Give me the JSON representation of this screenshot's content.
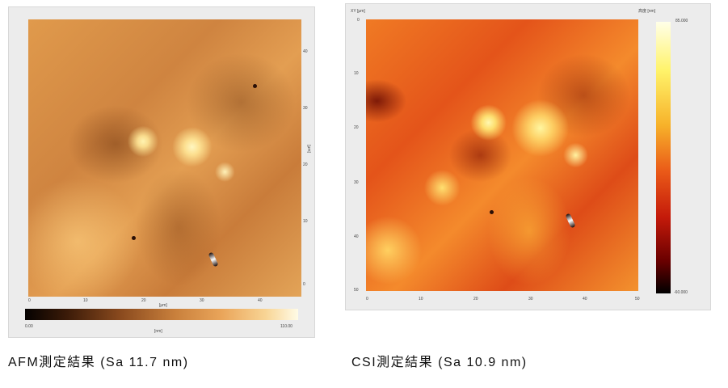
{
  "afm": {
    "caption": "AFM測定結果 (Sa 11.7 nm)",
    "x_ticks": [
      "0",
      "10",
      "20",
      "30",
      "40"
    ],
    "x_unit": "[μm]",
    "y_ticks": [
      "40",
      "30",
      "20",
      "10",
      "0"
    ],
    "y_unit": "[μm]",
    "colorbar_min": "0.00",
    "colorbar_max": "110.00",
    "colorbar_unit": "[nm]"
  },
  "csi": {
    "caption": "CSI測定結果 (Sa 10.9 nm)",
    "corner_label": "XY [μm]",
    "y_ticks": [
      "0",
      "10",
      "20",
      "30",
      "40",
      "50"
    ],
    "x_ticks": [
      "0",
      "10",
      "20",
      "30",
      "40",
      "50"
    ],
    "colorbar_title": "高度 [nm]",
    "colorbar_max": "85.000",
    "colorbar_min": "-60.000"
  }
}
